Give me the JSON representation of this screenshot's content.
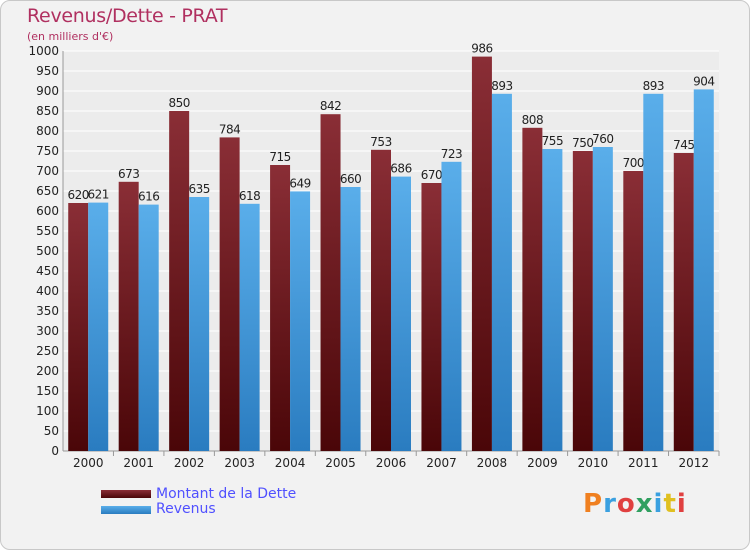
{
  "chart_data": {
    "type": "bar",
    "title": "Revenus/Dette - PRAT",
    "subtitle": "(en milliers d'€)",
    "categories": [
      "2000",
      "2001",
      "2002",
      "2003",
      "2004",
      "2005",
      "2006",
      "2007",
      "2008",
      "2009",
      "2010",
      "2011",
      "2012"
    ],
    "series": [
      {
        "name": "Montant de la Dette",
        "values": [
          620,
          673,
          850,
          784,
          715,
          842,
          753,
          670,
          986,
          808,
          750,
          700,
          745
        ],
        "color": "#7a1c24"
      },
      {
        "name": "Revenus",
        "values": [
          621,
          616,
          635,
          618,
          649,
          660,
          686,
          723,
          893,
          755,
          760,
          893,
          904
        ],
        "color": "#3d96dc"
      }
    ],
    "ylim": [
      0,
      1000
    ],
    "ytick_step": 50,
    "grid": true,
    "legend_position": "bottom-left"
  },
  "logo": {
    "text": "Proxiti",
    "colors": [
      "#f08020",
      "#3aa0e0",
      "#e04040",
      "#30a060",
      "#3aa0e0",
      "#e0c020",
      "#e04040"
    ]
  }
}
